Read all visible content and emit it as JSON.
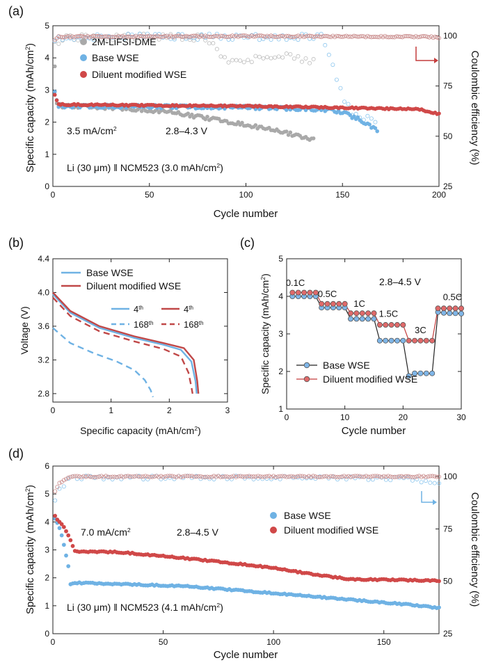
{
  "chart_data": [
    {
      "panel": "(a)",
      "type": "scatter",
      "xlabel": "Cycle number",
      "ylabel": "Specific capacity (mAh/cm",
      "ylabel_sup": "2",
      "ylabel_end": ")",
      "ylabel_right": "Coulombic efficiency (%)",
      "xlim": [
        0,
        200
      ],
      "ylim": [
        0,
        5
      ],
      "ylim_right": [
        25,
        105
      ],
      "x_ticks": [
        0,
        50,
        100,
        150,
        200
      ],
      "y_ticks": [
        0,
        1,
        2,
        3,
        4,
        5
      ],
      "y_ticks_right": [
        25,
        50,
        75,
        100
      ],
      "legend": [
        "2M-LiFSI-DME",
        "Base WSE",
        "Diluent modified WSE"
      ],
      "annotations": {
        "rate": "3.5 mA/cm",
        "rate_sup": "2",
        "window": "2.8–4.3 V",
        "cell": "Li (30 μm) ‖ NCM523 (3.0 mAh/cm",
        "cell_sup": "2",
        "cell_end": ")"
      },
      "series": [
        {
          "name": "2M-LiFSI-DME",
          "color": "#a9a9a9",
          "capacity": [
            [
              1,
              3.7
            ],
            [
              2,
              2.55
            ],
            [
              5,
              2.5
            ],
            [
              20,
              2.48
            ],
            [
              40,
              2.42
            ],
            [
              60,
              2.32
            ],
            [
              80,
              2.12
            ],
            [
              100,
              1.92
            ],
            [
              120,
              1.68
            ],
            [
              135,
              1.45
            ]
          ],
          "ce": [
            [
              1,
              96
            ],
            [
              5,
              99
            ],
            [
              50,
              99.5
            ],
            [
              80,
              99
            ],
            [
              85,
              92
            ],
            [
              90,
              88
            ],
            [
              95,
              89
            ],
            [
              100,
              88
            ],
            [
              110,
              89
            ],
            [
              120,
              90
            ],
            [
              130,
              88
            ],
            [
              135,
              87
            ]
          ]
        },
        {
          "name": "Base WSE",
          "color": "#6fb2e4",
          "capacity": [
            [
              1,
              2.9
            ],
            [
              3,
              2.5
            ],
            [
              20,
              2.5
            ],
            [
              60,
              2.48
            ],
            [
              100,
              2.46
            ],
            [
              140,
              2.4
            ],
            [
              150,
              2.3
            ],
            [
              160,
              2.05
            ],
            [
              168,
              1.75
            ]
          ],
          "ce": [
            [
              1,
              97
            ],
            [
              5,
              99.5
            ],
            [
              140,
              99.5
            ],
            [
              145,
              86
            ],
            [
              150,
              70
            ],
            [
              155,
              62
            ],
            [
              160,
              60
            ],
            [
              168,
              57
            ]
          ]
        },
        {
          "name": "Diluent modified WSE",
          "color": "#d04848",
          "capacity": [
            [
              1,
              2.85
            ],
            [
              3,
              2.55
            ],
            [
              50,
              2.52
            ],
            [
              100,
              2.5
            ],
            [
              150,
              2.45
            ],
            [
              190,
              2.4
            ],
            [
              200,
              2.25
            ]
          ],
          "ce": [
            [
              1,
              98
            ],
            [
              3,
              99.5
            ],
            [
              100,
              99.8
            ],
            [
              195,
              99.5
            ],
            [
              200,
              99
            ]
          ]
        }
      ]
    },
    {
      "panel": "(b)",
      "type": "line",
      "xlabel": "Specific capacity (mAh/cm",
      "xlabel_sup": "2",
      "xlabel_end": ")",
      "ylabel": "Voltage (V)",
      "xlim": [
        0,
        3
      ],
      "ylim": [
        2.7,
        4.4
      ],
      "x_ticks": [
        0,
        1,
        2,
        3
      ],
      "y_ticks": [
        2.8,
        3.2,
        3.6,
        4.0,
        4.4
      ],
      "legend": [
        "Base WSE",
        "Diluent modified WSE"
      ],
      "sub_legend": {
        "base": "4",
        "mod": "4",
        "base2": "168",
        "mod2": "168",
        "sup1": "th",
        "sup2": "th",
        "sup3": "th",
        "sup4": "th"
      },
      "series": [
        {
          "name": "Base WSE 4th",
          "color": "#6fb2e4",
          "dash": false,
          "points": [
            [
              0,
              3.98
            ],
            [
              0.3,
              3.76
            ],
            [
              0.8,
              3.58
            ],
            [
              1.4,
              3.46
            ],
            [
              1.9,
              3.38
            ],
            [
              2.2,
              3.32
            ],
            [
              2.38,
              3.18
            ],
            [
              2.45,
              2.95
            ],
            [
              2.47,
              2.8
            ]
          ]
        },
        {
          "name": "Diluent modified WSE 4th",
          "color": "#c04848",
          "dash": false,
          "points": [
            [
              0,
              4.0
            ],
            [
              0.3,
              3.78
            ],
            [
              0.8,
              3.6
            ],
            [
              1.4,
              3.48
            ],
            [
              1.9,
              3.4
            ],
            [
              2.25,
              3.34
            ],
            [
              2.42,
              3.2
            ],
            [
              2.48,
              2.95
            ],
            [
              2.5,
              2.8
            ]
          ]
        },
        {
          "name": "Base WSE 168th",
          "color": "#6fb2e4",
          "dash": true,
          "points": [
            [
              0,
              3.58
            ],
            [
              0.3,
              3.4
            ],
            [
              0.7,
              3.28
            ],
            [
              1.1,
              3.18
            ],
            [
              1.4,
              3.08
            ],
            [
              1.58,
              2.96
            ],
            [
              1.68,
              2.84
            ],
            [
              1.72,
              2.76
            ]
          ]
        },
        {
          "name": "Diluent modified WSE 168th",
          "color": "#c04848",
          "dash": true,
          "points": [
            [
              0,
              3.94
            ],
            [
              0.3,
              3.72
            ],
            [
              0.8,
              3.54
            ],
            [
              1.4,
              3.42
            ],
            [
              1.9,
              3.33
            ],
            [
              2.2,
              3.24
            ],
            [
              2.33,
              3.05
            ],
            [
              2.38,
              2.88
            ],
            [
              2.4,
              2.8
            ]
          ]
        }
      ]
    },
    {
      "panel": "(c)",
      "type": "line",
      "xlabel": "Cycle number",
      "ylabel": "Specific capacity (mAh/cm",
      "ylabel_sup": "2",
      "ylabel_end": ")",
      "xlim": [
        0,
        30
      ],
      "ylim": [
        1,
        5
      ],
      "x_ticks": [
        0,
        10,
        20,
        30
      ],
      "y_ticks": [
        1,
        2,
        3,
        4,
        5
      ],
      "annotations": {
        "window": "2.8–4.5 V"
      },
      "rate_labels": [
        {
          "text": "0.1C",
          "x": 1.5,
          "y": 4.28
        },
        {
          "text": "0.5C",
          "x": 7,
          "y": 3.98
        },
        {
          "text": "1C",
          "x": 12.5,
          "y": 3.72
        },
        {
          "text": "1.5C",
          "x": 17.5,
          "y": 3.45
        },
        {
          "text": "3C",
          "x": 23,
          "y": 3.02
        },
        {
          "text": "0.5C",
          "x": 28.5,
          "y": 3.9
        }
      ],
      "legend": [
        "Base WSE",
        "Diluent modified WSE"
      ],
      "series": [
        {
          "name": "Base WSE",
          "color": "#222222",
          "marker": "#7fb6e8",
          "x": [
            1,
            2,
            3,
            4,
            5,
            6,
            7,
            8,
            9,
            10,
            11,
            12,
            13,
            14,
            15,
            16,
            17,
            18,
            19,
            20,
            21,
            22,
            23,
            24,
            25,
            26,
            27,
            28,
            29,
            30
          ],
          "values": [
            4.0,
            4.0,
            4.0,
            4.0,
            4.0,
            3.7,
            3.7,
            3.7,
            3.7,
            3.7,
            3.4,
            3.4,
            3.4,
            3.4,
            3.4,
            2.82,
            2.82,
            2.82,
            2.82,
            2.82,
            1.88,
            1.95,
            1.95,
            1.95,
            1.95,
            3.58,
            3.56,
            3.55,
            3.55,
            3.54
          ]
        },
        {
          "name": "Diluent modified WSE",
          "color": "#c43c3c",
          "marker": "#e06a6a",
          "x": [
            1,
            2,
            3,
            4,
            5,
            6,
            7,
            8,
            9,
            10,
            11,
            12,
            13,
            14,
            15,
            16,
            17,
            18,
            19,
            20,
            21,
            22,
            23,
            24,
            25,
            26,
            27,
            28,
            29,
            30
          ],
          "values": [
            4.1,
            4.1,
            4.1,
            4.1,
            4.1,
            3.8,
            3.8,
            3.8,
            3.8,
            3.8,
            3.55,
            3.55,
            3.55,
            3.55,
            3.55,
            3.24,
            3.24,
            3.24,
            3.24,
            3.24,
            2.82,
            2.82,
            2.82,
            2.82,
            2.82,
            3.68,
            3.68,
            3.68,
            3.68,
            3.68
          ]
        }
      ]
    },
    {
      "panel": "(d)",
      "type": "scatter",
      "xlabel": "Cycle number",
      "ylabel": "Specific capacity (mAh/cm",
      "ylabel_sup": "2",
      "ylabel_end": ")",
      "ylabel_right": "Coulombic efficiency (%)",
      "xlim": [
        0,
        175
      ],
      "ylim": [
        0,
        6
      ],
      "ylim_right": [
        25,
        105
      ],
      "x_ticks": [
        0,
        50,
        100,
        150
      ],
      "y_ticks": [
        0,
        1,
        2,
        3,
        4,
        5,
        6
      ],
      "y_ticks_right": [
        25,
        50,
        75,
        100
      ],
      "legend": [
        "Base WSE",
        "Diluent modified WSE"
      ],
      "annotations": {
        "rate": "7.0 mA/cm",
        "rate_sup": "2",
        "window": "2.8–4.5 V",
        "cell": "Li (30 μm) ‖ NCM523 (4.1 mAh/cm",
        "cell_sup": "2",
        "cell_end": ")"
      },
      "series": [
        {
          "name": "Base WSE",
          "color": "#6fb2e4",
          "capacity": [
            [
              1,
              4.1
            ],
            [
              3,
              3.8
            ],
            [
              5,
              3.2
            ],
            [
              7,
              2.4
            ],
            [
              8,
              1.75
            ],
            [
              10,
              1.82
            ],
            [
              30,
              1.78
            ],
            [
              60,
              1.7
            ],
            [
              100,
              1.45
            ],
            [
              130,
              1.25
            ],
            [
              160,
              1.05
            ],
            [
              175,
              0.92
            ]
          ],
          "ce": [
            [
              1,
              88
            ],
            [
              3,
              95
            ],
            [
              5,
              96
            ],
            [
              8,
              99.5
            ],
            [
              100,
              99.5
            ],
            [
              160,
              99
            ],
            [
              170,
              97
            ],
            [
              175,
              96
            ]
          ]
        },
        {
          "name": "Diluent modified WSE",
          "color": "#d04848",
          "capacity": [
            [
              1,
              4.2
            ],
            [
              3,
              4.0
            ],
            [
              5,
              3.8
            ],
            [
              8,
              3.35
            ],
            [
              10,
              2.95
            ],
            [
              30,
              2.92
            ],
            [
              60,
              2.7
            ],
            [
              90,
              2.45
            ],
            [
              100,
              2.35
            ],
            [
              120,
              2.1
            ],
            [
              135,
              1.95
            ],
            [
              175,
              1.9
            ]
          ],
          "ce": [
            [
              1,
              93
            ],
            [
              3,
              97
            ],
            [
              8,
              100
            ],
            [
              100,
              100
            ],
            [
              175,
              100
            ]
          ]
        }
      ]
    }
  ]
}
